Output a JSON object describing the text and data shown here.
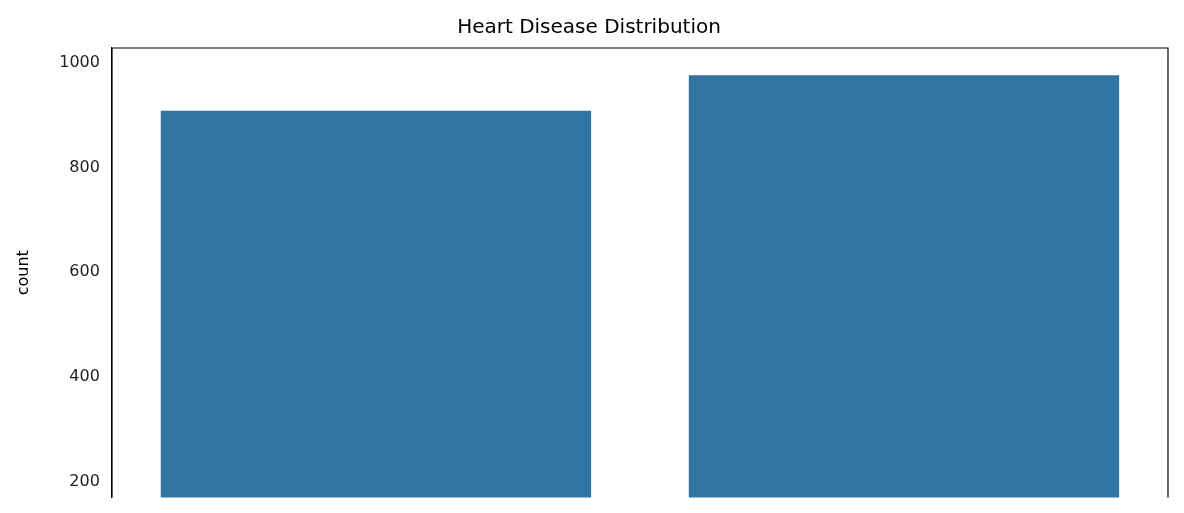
{
  "chart_data": {
    "type": "bar",
    "title": "Heart Disease Distribution",
    "ylabel": "count",
    "categories": [
      null,
      null
    ],
    "values": [
      908,
      976
    ],
    "color": "#3274a1",
    "ylim": [
      170,
      1028
    ],
    "yticks": [
      200,
      400,
      600,
      800,
      1000
    ],
    "grid": false,
    "legend": false
  }
}
